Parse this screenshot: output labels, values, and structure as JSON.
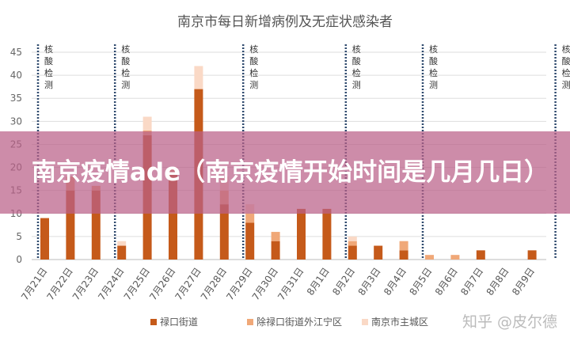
{
  "chart_data": {
    "type": "bar",
    "stacked": true,
    "title": "南京市每日新增病例及无症状感染者",
    "xlabel": "",
    "ylabel": "",
    "ylim": [
      0,
      45
    ],
    "yticks": [
      0,
      5,
      10,
      15,
      20,
      25,
      30,
      35,
      40,
      45
    ],
    "grid": true,
    "legend_position": "bottom",
    "categories": [
      "7月21日",
      "7月22日",
      "7月23日",
      "7月24日",
      "7月25日",
      "7月26日",
      "7月27日",
      "7月28日",
      "7月29日",
      "7月30日",
      "7月31日",
      "8月1日",
      "8月2日",
      "8月3日",
      "8月4日",
      "8月5日",
      "8月6日",
      "8月7日",
      "8月8日",
      "8月9日"
    ],
    "series": [
      {
        "name": "禄口街道",
        "color": "#c55a1a",
        "values": [
          9,
          15,
          15,
          3,
          27,
          19,
          37,
          12,
          8,
          4,
          11,
          11,
          3,
          3,
          2,
          0,
          0,
          2,
          0,
          2
        ]
      },
      {
        "name": "除禄口街道外江宁区",
        "color": "#f0a878",
        "values": [
          0,
          3,
          1,
          0,
          1,
          1,
          0,
          3,
          2,
          2,
          0,
          0,
          1,
          0,
          2,
          1,
          1,
          0,
          0,
          0
        ]
      },
      {
        "name": "南京市主城区",
        "color": "#fad9c6",
        "values": [
          0,
          0,
          0,
          1,
          3,
          0,
          5,
          3,
          2,
          0,
          0,
          0,
          1,
          0,
          0,
          0,
          0,
          0,
          0,
          0
        ]
      }
    ],
    "annotations": {
      "label": "核酸检测",
      "before_categories": [
        "7月21日",
        "7月24日",
        "7月29日",
        "8月2日",
        "8月5日"
      ],
      "after_last": true
    }
  },
  "banner": {
    "text": "南京疫情ade（南京疫情开始时间是几月几日）"
  },
  "watermark": "知乎 @皮尔德"
}
